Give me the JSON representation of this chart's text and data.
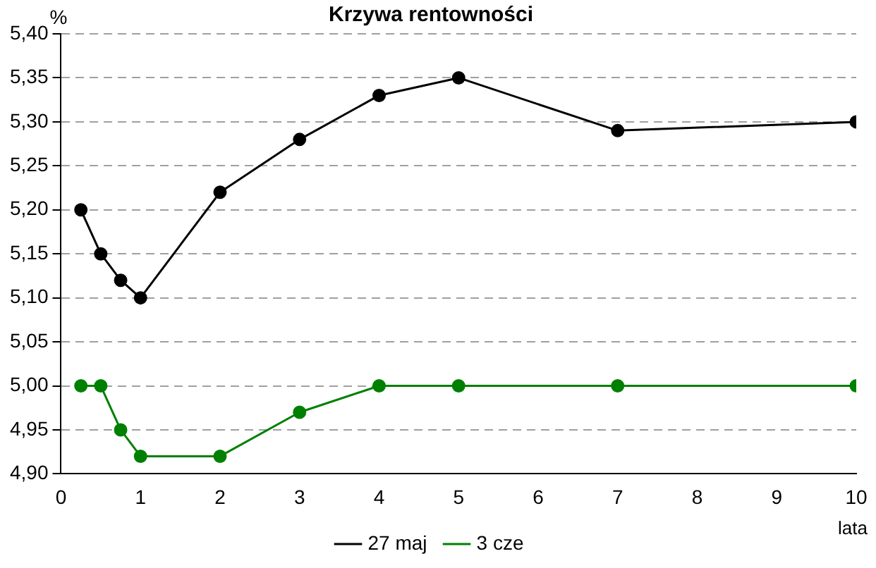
{
  "chart_data": {
    "type": "line",
    "title": "Krzywa rentowności",
    "ylabel": "%",
    "xlabel": "lata",
    "xlim": [
      0,
      10
    ],
    "xticks": [
      0,
      1,
      2,
      3,
      4,
      5,
      6,
      7,
      8,
      9,
      10
    ],
    "ylim": [
      4.9,
      5.4
    ],
    "yticks": [
      {
        "value": 4.9,
        "label": "4,90"
      },
      {
        "value": 4.95,
        "label": "4,95"
      },
      {
        "value": 5.0,
        "label": "5,00"
      },
      {
        "value": 5.05,
        "label": "5,05"
      },
      {
        "value": 5.1,
        "label": "5,10"
      },
      {
        "value": 5.15,
        "label": "5,15"
      },
      {
        "value": 5.2,
        "label": "5,20"
      },
      {
        "value": 5.25,
        "label": "5,25"
      },
      {
        "value": 5.3,
        "label": "5,30"
      },
      {
        "value": 5.35,
        "label": "5,35"
      },
      {
        "value": 5.4,
        "label": "5,40"
      }
    ],
    "x": [
      0.25,
      0.5,
      0.75,
      1,
      2,
      3,
      4,
      5,
      7,
      10
    ],
    "series": [
      {
        "name": "27 maj",
        "color": "#000000",
        "values": [
          5.2,
          5.15,
          5.12,
          5.1,
          5.22,
          5.28,
          5.33,
          5.35,
          5.29,
          5.3
        ]
      },
      {
        "name": "3 cze",
        "color": "#008000",
        "values": [
          5.0,
          5.0,
          4.95,
          4.92,
          4.92,
          4.97,
          5.0,
          5.0,
          5.0,
          5.0
        ]
      }
    ],
    "grid": "y",
    "legend": "bottom",
    "marker": "circle",
    "line_style": "solid"
  }
}
